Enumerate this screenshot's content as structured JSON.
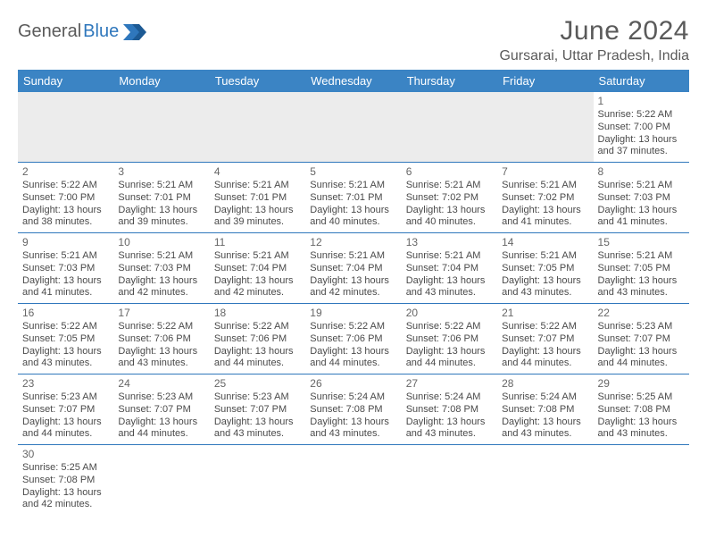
{
  "logo": {
    "word1": "General",
    "word2": "Blue"
  },
  "title": "June 2024",
  "location": "Gursarai, Uttar Pradesh, India",
  "colors": {
    "header_bg": "#3b84c4",
    "header_text": "#ffffff",
    "rule": "#2f77bc",
    "text": "#4a4a4a",
    "muted_bg": "#ececec"
  },
  "weekdays": [
    "Sunday",
    "Monday",
    "Tuesday",
    "Wednesday",
    "Thursday",
    "Friday",
    "Saturday"
  ],
  "label_sunrise": "Sunrise:",
  "label_sunset": "Sunset:",
  "label_daylight": "Daylight:",
  "weeks": [
    [
      null,
      null,
      null,
      null,
      null,
      null,
      {
        "n": "1",
        "sr": "5:22 AM",
        "ss": "7:00 PM",
        "dl1": "13 hours",
        "dl2": "and 37 minutes."
      }
    ],
    [
      {
        "n": "2",
        "sr": "5:22 AM",
        "ss": "7:00 PM",
        "dl1": "13 hours",
        "dl2": "and 38 minutes."
      },
      {
        "n": "3",
        "sr": "5:21 AM",
        "ss": "7:01 PM",
        "dl1": "13 hours",
        "dl2": "and 39 minutes."
      },
      {
        "n": "4",
        "sr": "5:21 AM",
        "ss": "7:01 PM",
        "dl1": "13 hours",
        "dl2": "and 39 minutes."
      },
      {
        "n": "5",
        "sr": "5:21 AM",
        "ss": "7:01 PM",
        "dl1": "13 hours",
        "dl2": "and 40 minutes."
      },
      {
        "n": "6",
        "sr": "5:21 AM",
        "ss": "7:02 PM",
        "dl1": "13 hours",
        "dl2": "and 40 minutes."
      },
      {
        "n": "7",
        "sr": "5:21 AM",
        "ss": "7:02 PM",
        "dl1": "13 hours",
        "dl2": "and 41 minutes."
      },
      {
        "n": "8",
        "sr": "5:21 AM",
        "ss": "7:03 PM",
        "dl1": "13 hours",
        "dl2": "and 41 minutes."
      }
    ],
    [
      {
        "n": "9",
        "sr": "5:21 AM",
        "ss": "7:03 PM",
        "dl1": "13 hours",
        "dl2": "and 41 minutes."
      },
      {
        "n": "10",
        "sr": "5:21 AM",
        "ss": "7:03 PM",
        "dl1": "13 hours",
        "dl2": "and 42 minutes."
      },
      {
        "n": "11",
        "sr": "5:21 AM",
        "ss": "7:04 PM",
        "dl1": "13 hours",
        "dl2": "and 42 minutes."
      },
      {
        "n": "12",
        "sr": "5:21 AM",
        "ss": "7:04 PM",
        "dl1": "13 hours",
        "dl2": "and 42 minutes."
      },
      {
        "n": "13",
        "sr": "5:21 AM",
        "ss": "7:04 PM",
        "dl1": "13 hours",
        "dl2": "and 43 minutes."
      },
      {
        "n": "14",
        "sr": "5:21 AM",
        "ss": "7:05 PM",
        "dl1": "13 hours",
        "dl2": "and 43 minutes."
      },
      {
        "n": "15",
        "sr": "5:21 AM",
        "ss": "7:05 PM",
        "dl1": "13 hours",
        "dl2": "and 43 minutes."
      }
    ],
    [
      {
        "n": "16",
        "sr": "5:22 AM",
        "ss": "7:05 PM",
        "dl1": "13 hours",
        "dl2": "and 43 minutes."
      },
      {
        "n": "17",
        "sr": "5:22 AM",
        "ss": "7:06 PM",
        "dl1": "13 hours",
        "dl2": "and 43 minutes."
      },
      {
        "n": "18",
        "sr": "5:22 AM",
        "ss": "7:06 PM",
        "dl1": "13 hours",
        "dl2": "and 44 minutes."
      },
      {
        "n": "19",
        "sr": "5:22 AM",
        "ss": "7:06 PM",
        "dl1": "13 hours",
        "dl2": "and 44 minutes."
      },
      {
        "n": "20",
        "sr": "5:22 AM",
        "ss": "7:06 PM",
        "dl1": "13 hours",
        "dl2": "and 44 minutes."
      },
      {
        "n": "21",
        "sr": "5:22 AM",
        "ss": "7:07 PM",
        "dl1": "13 hours",
        "dl2": "and 44 minutes."
      },
      {
        "n": "22",
        "sr": "5:23 AM",
        "ss": "7:07 PM",
        "dl1": "13 hours",
        "dl2": "and 44 minutes."
      }
    ],
    [
      {
        "n": "23",
        "sr": "5:23 AM",
        "ss": "7:07 PM",
        "dl1": "13 hours",
        "dl2": "and 44 minutes."
      },
      {
        "n": "24",
        "sr": "5:23 AM",
        "ss": "7:07 PM",
        "dl1": "13 hours",
        "dl2": "and 44 minutes."
      },
      {
        "n": "25",
        "sr": "5:23 AM",
        "ss": "7:07 PM",
        "dl1": "13 hours",
        "dl2": "and 43 minutes."
      },
      {
        "n": "26",
        "sr": "5:24 AM",
        "ss": "7:08 PM",
        "dl1": "13 hours",
        "dl2": "and 43 minutes."
      },
      {
        "n": "27",
        "sr": "5:24 AM",
        "ss": "7:08 PM",
        "dl1": "13 hours",
        "dl2": "and 43 minutes."
      },
      {
        "n": "28",
        "sr": "5:24 AM",
        "ss": "7:08 PM",
        "dl1": "13 hours",
        "dl2": "and 43 minutes."
      },
      {
        "n": "29",
        "sr": "5:25 AM",
        "ss": "7:08 PM",
        "dl1": "13 hours",
        "dl2": "and 43 minutes."
      }
    ],
    [
      {
        "n": "30",
        "sr": "5:25 AM",
        "ss": "7:08 PM",
        "dl1": "13 hours",
        "dl2": "and 42 minutes."
      },
      null,
      null,
      null,
      null,
      null,
      null
    ]
  ]
}
